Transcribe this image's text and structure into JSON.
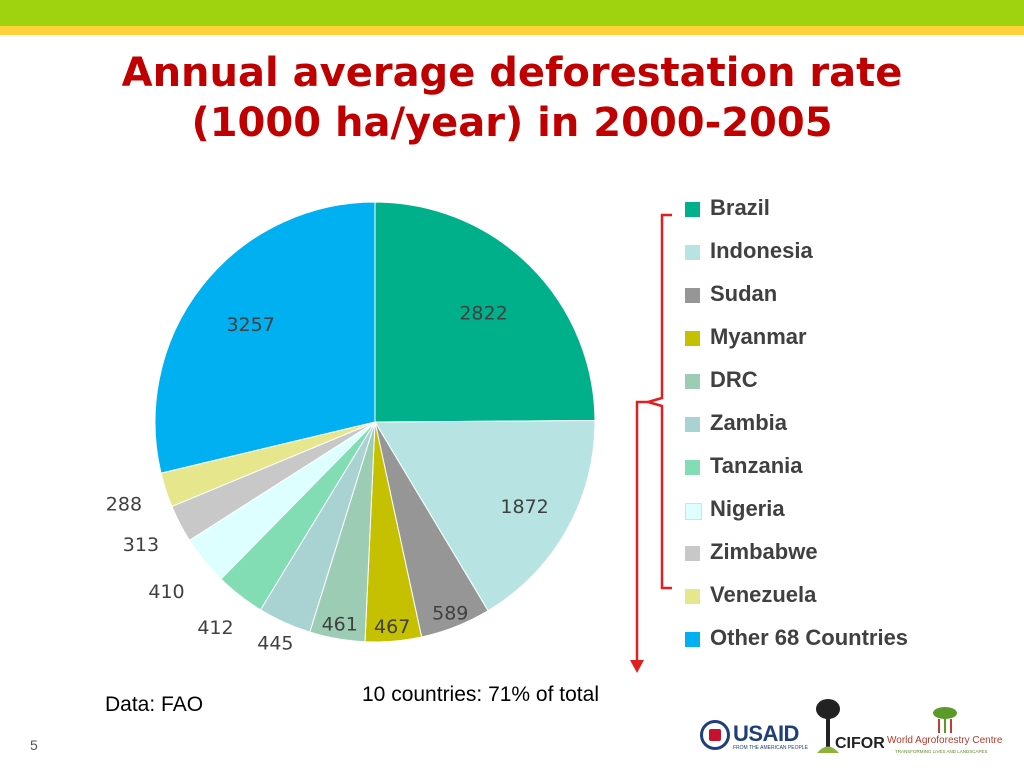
{
  "slide": {
    "title_line1": "Annual average deforestation rate",
    "title_line2": "(1000 ha/year) in 2000-2005",
    "note_total": "10 countries: 71% of total",
    "note_source": "Data: FAO",
    "page_number": "5"
  },
  "logos": {
    "usaid": "USAID",
    "usaid_sub": "FROM THE AMERICAN PEOPLE",
    "cifor": "CIFOR",
    "wac": "World Agroforestry Centre",
    "wac_sub": "TRANSFORMING LIVES AND LANDSCAPES"
  },
  "chart_data": {
    "type": "pie",
    "title": "Annual average deforestation rate (1000 ha/year) in 2000-2005",
    "legend_position": "right",
    "categories": [
      "Brazil",
      "Indonesia",
      "Sudan",
      "Myanmar",
      "DRC",
      "Zambia",
      "Tanzania",
      "Nigeria",
      "Zimbabwe",
      "Venezuela",
      "Other 68 Countries"
    ],
    "values": [
      2822,
      1872,
      589,
      467,
      461,
      445,
      412,
      410,
      313,
      288,
      3257
    ],
    "colors": [
      "#00b08a",
      "#b7e3e3",
      "#969696",
      "#c5c000",
      "#9cccb4",
      "#a9d3d3",
      "#82dcb4",
      "#ddffff",
      "#c8c8c8",
      "#e6e68c",
      "#00b0f0"
    ]
  },
  "colors": {
    "title": "#c00000",
    "bracket": "#e02020",
    "top_bar": "#9fd310",
    "top_bar_2": "#ffd23a"
  }
}
